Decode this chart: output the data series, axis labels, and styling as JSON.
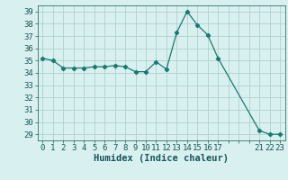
{
  "x": [
    0,
    1,
    2,
    3,
    4,
    5,
    6,
    7,
    8,
    9,
    10,
    11,
    12,
    13,
    14,
    15,
    16,
    17,
    21,
    22,
    23
  ],
  "y": [
    35.2,
    35.0,
    34.4,
    34.4,
    34.4,
    34.5,
    34.5,
    34.6,
    34.5,
    34.1,
    34.1,
    34.9,
    34.3,
    37.3,
    39.0,
    37.9,
    37.1,
    35.2,
    29.3,
    29.0,
    29.0
  ],
  "line_color": "#1a7a6e",
  "marker": "D",
  "marker_size": 2.2,
  "bg_color": "#d8f0f0",
  "grid_color": "#b0d0d0",
  "xlabel": "Humidex (Indice chaleur)",
  "xlim": [
    -0.5,
    23.5
  ],
  "ylim": [
    28.5,
    39.5
  ],
  "yticks": [
    29,
    30,
    31,
    32,
    33,
    34,
    35,
    36,
    37,
    38,
    39
  ],
  "xtick_positions": [
    0,
    1,
    2,
    3,
    4,
    5,
    6,
    7,
    8,
    9,
    10,
    11,
    12,
    13,
    14,
    15,
    16,
    17,
    18,
    19,
    20,
    21,
    22,
    23
  ],
  "xtick_labels": [
    "0",
    "1",
    "2",
    "3",
    "4",
    "5",
    "6",
    "7",
    "8",
    "9",
    "10",
    "11",
    "12",
    "13",
    "14",
    "15",
    "16",
    "17",
    "",
    "",
    "",
    "21",
    "22",
    "23"
  ],
  "tick_color": "#1a5555",
  "font_size": 6.5,
  "label_fontsize": 7.5,
  "line_width": 0.9
}
